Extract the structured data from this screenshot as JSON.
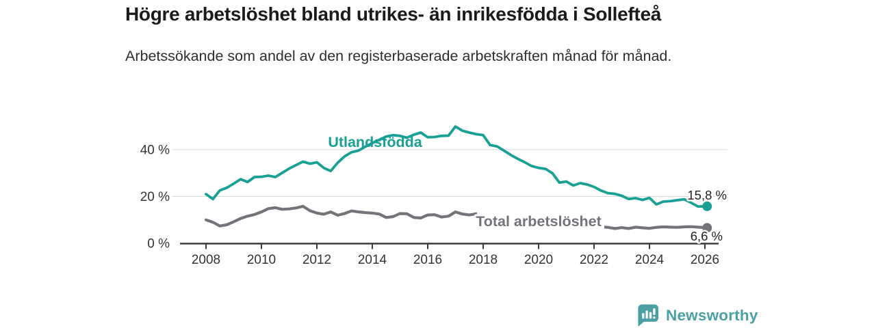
{
  "chart_data": {
    "type": "line",
    "title": "Högre arbetslöshet bland utrikes- än inrikesfödda i Sollefteå",
    "subtitle": "Arbetssökande som andel av den registerbaserade arbetskraften månad för månad.",
    "unit": "%",
    "grid": "horizontal-y",
    "legend": "inline-labels",
    "ylim": [
      0,
      55
    ],
    "yticks": [
      0,
      20,
      40
    ],
    "ytick_labels": [
      "0 %",
      "20 %",
      "40 %"
    ],
    "xticks": [
      2008,
      2010,
      2012,
      2014,
      2016,
      2018,
      2020,
      2022,
      2024,
      2026
    ],
    "x": [
      2008,
      2008.25,
      2008.5,
      2008.75,
      2009,
      2009.25,
      2009.5,
      2009.75,
      2010,
      2010.25,
      2010.5,
      2010.75,
      2011,
      2011.25,
      2011.5,
      2011.75,
      2012,
      2012.25,
      2012.5,
      2012.75,
      2013,
      2013.25,
      2013.5,
      2013.75,
      2014,
      2014.25,
      2014.5,
      2014.75,
      2015,
      2015.25,
      2015.5,
      2015.75,
      2016,
      2016.25,
      2016.5,
      2016.75,
      2017,
      2017.25,
      2017.5,
      2017.75,
      2018,
      2018.25,
      2018.5,
      2018.75,
      2019,
      2019.25,
      2019.5,
      2019.75,
      2020,
      2020.25,
      2020.5,
      2020.75,
      2021,
      2021.25,
      2021.5,
      2021.75,
      2022,
      2022.25,
      2022.5,
      2022.75,
      2023,
      2023.25,
      2023.5,
      2023.75,
      2024,
      2024.25,
      2024.5,
      2024.75,
      2025,
      2025.25,
      2025.5,
      2025.75,
      2026.08
    ],
    "series": [
      {
        "name": "Utlandsfödda",
        "color": "#18A094",
        "end_label": "15,8 %",
        "end_value": 15.8,
        "values": [
          21.0,
          18.9,
          22.6,
          23.7,
          25.5,
          27.4,
          26.2,
          28.3,
          28.4,
          28.9,
          28.3,
          30.1,
          31.9,
          33.4,
          34.9,
          34.0,
          34.6,
          32.2,
          30.9,
          34.4,
          37.1,
          38.9,
          39.6,
          41.3,
          42.8,
          44.2,
          45.6,
          46.2,
          45.9,
          45.1,
          46.4,
          47.3,
          45.3,
          45.4,
          45.9,
          46.0,
          49.9,
          48.1,
          47.3,
          46.6,
          46.2,
          42.0,
          41.4,
          39.6,
          37.7,
          36.1,
          34.6,
          33.0,
          32.2,
          31.8,
          29.9,
          25.9,
          26.4,
          24.7,
          25.7,
          25.1,
          24.1,
          22.5,
          21.4,
          21.1,
          20.3,
          18.9,
          19.3,
          18.5,
          19.4,
          16.6,
          17.8,
          18.0,
          18.4,
          18.8,
          17.3,
          15.7,
          15.8
        ]
      },
      {
        "name": "Total arbetslöshet",
        "color": "#75737A",
        "end_label": "6,6 %",
        "end_value": 6.6,
        "values": [
          10.0,
          9.0,
          7.4,
          7.9,
          9.2,
          10.6,
          11.6,
          12.3,
          13.4,
          14.8,
          15.2,
          14.5,
          14.7,
          15.1,
          15.8,
          13.9,
          12.9,
          12.4,
          13.4,
          12.0,
          12.7,
          13.8,
          13.4,
          13.1,
          12.9,
          12.5,
          11.0,
          11.4,
          12.7,
          12.6,
          11.0,
          10.8,
          12.1,
          12.2,
          11.2,
          11.6,
          13.4,
          12.5,
          12.1,
          12.6,
          12.3,
          11.8,
          11.5,
          11.1,
          10.8,
          10.5,
          10.2,
          10.1,
          10.3,
          10.6,
          10.4,
          10.0,
          9.4,
          8.9,
          8.4,
          7.9,
          7.4,
          7.0,
          6.8,
          6.3,
          6.7,
          6.3,
          6.9,
          6.6,
          6.4,
          6.8,
          7.0,
          6.9,
          6.8,
          7.0,
          7.1,
          6.9,
          6.6
        ]
      }
    ]
  },
  "footer": {
    "brand": "Newsworthy",
    "brand_color": "#4AA0A5",
    "icon": "bar-chart-speech-bubble"
  }
}
